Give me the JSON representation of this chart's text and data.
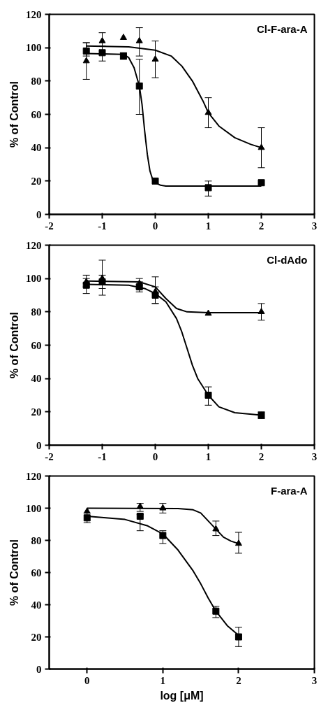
{
  "chart_data": [
    {
      "type": "scatter",
      "ylabel": "% of Control",
      "annotations": [
        "Cl-F-ara-A"
      ],
      "xlim": [
        -2,
        3
      ],
      "xticks": [
        -2,
        -1,
        0,
        1,
        2,
        3
      ],
      "ylim": [
        0,
        120
      ],
      "yticks": [
        0,
        20,
        40,
        60,
        80,
        100,
        120
      ],
      "grid": false,
      "series": [
        {
          "marker": "triangle",
          "color": "#000000",
          "x": [
            -1.3,
            -1,
            -0.6,
            -0.3,
            0,
            1,
            2
          ],
          "values": [
            92,
            104,
            106,
            104,
            93,
            61,
            40
          ],
          "errors": [
            [
              81,
              103
            ],
            [
              96,
              109
            ],
            null,
            [
              95,
              112
            ],
            [
              82,
              104
            ],
            [
              52,
              70
            ],
            [
              28,
              52
            ]
          ]
        },
        {
          "marker": "square",
          "color": "#000000",
          "x": [
            -1.3,
            -1,
            -0.6,
            -0.3,
            0,
            1,
            2
          ],
          "values": [
            98,
            97,
            95,
            77,
            20,
            16,
            19
          ],
          "errors": [
            [
              95,
              103
            ],
            [
              92,
              101
            ],
            [
              93,
              97
            ],
            [
              60,
              93
            ],
            null,
            [
              11,
              20
            ],
            null
          ]
        },
        {
          "type": "line",
          "marker": "none",
          "color": "#000000",
          "x": [
            -1.3,
            -0.5,
            0,
            0.3,
            0.5,
            0.7,
            0.9,
            1,
            1.2,
            1.5,
            1.8,
            2
          ],
          "values": [
            101,
            100.5,
            98.5,
            95,
            89,
            80,
            68,
            61,
            53,
            46,
            42,
            40
          ]
        },
        {
          "type": "line",
          "marker": "none",
          "color": "#000000",
          "x": [
            -1.3,
            -0.6,
            -0.5,
            -0.4,
            -0.3,
            -0.25,
            -0.2,
            -0.15,
            -0.1,
            -0.05,
            0,
            0.1,
            0.2,
            2
          ],
          "values": [
            96.5,
            96,
            94,
            88,
            77,
            66,
            50,
            36,
            26,
            21,
            19,
            17.5,
            17,
            17
          ]
        }
      ]
    },
    {
      "type": "scatter",
      "ylabel": "% of Control",
      "annotations": [
        "Cl-dAdo"
      ],
      "xlim": [
        -2,
        3
      ],
      "xticks": [
        -2,
        -1,
        0,
        1,
        2,
        3
      ],
      "ylim": [
        0,
        120
      ],
      "yticks": [
        0,
        20,
        40,
        60,
        80,
        100,
        120
      ],
      "grid": false,
      "series": [
        {
          "marker": "triangle",
          "color": "#000000",
          "x": [
            -1.3,
            -1,
            -0.3,
            0,
            1,
            2
          ],
          "values": [
            98,
            100,
            97,
            92,
            79,
            80
          ],
          "errors": [
            [
              95,
              102
            ],
            [
              90,
              111
            ],
            [
              94,
              100
            ],
            [
              85,
              101
            ],
            null,
            [
              75,
              85
            ]
          ]
        },
        {
          "marker": "square",
          "color": "#000000",
          "x": [
            -1.3,
            -1,
            -0.3,
            0,
            1,
            2
          ],
          "values": [
            96,
            98,
            95,
            90,
            30,
            18
          ],
          "errors": [
            [
              91,
              100
            ],
            [
              94,
              102
            ],
            [
              92,
              98
            ],
            [
              85,
              95
            ],
            [
              24,
              35
            ],
            [
              16,
              20
            ]
          ]
        },
        {
          "type": "line",
          "marker": "none",
          "color": "#000000",
          "x": [
            -1.3,
            -0.3,
            0,
            0.2,
            0.4,
            0.6,
            1,
            2
          ],
          "values": [
            98.5,
            98,
            95,
            88,
            82,
            80,
            79.5,
            79.5
          ]
        },
        {
          "type": "line",
          "marker": "none",
          "color": "#000000",
          "x": [
            -1.3,
            -0.5,
            -0.2,
            0,
            0.2,
            0.4,
            0.5,
            0.6,
            0.7,
            0.8,
            1,
            1.2,
            1.5,
            2
          ],
          "values": [
            96.5,
            96,
            94,
            91,
            86,
            76,
            68,
            58,
            48,
            40,
            30,
            23,
            19.5,
            18
          ]
        }
      ]
    },
    {
      "type": "scatter",
      "xlabel": "log [μM]",
      "ylabel": "% of Control",
      "annotations": [
        "F-ara-A"
      ],
      "xlim": [
        -0.5,
        3
      ],
      "xticks": [
        0,
        1,
        2,
        3
      ],
      "ylim": [
        0,
        120
      ],
      "yticks": [
        0,
        20,
        40,
        60,
        80,
        100,
        120
      ],
      "grid": false,
      "series": [
        {
          "marker": "triangle",
          "color": "#000000",
          "x": [
            0,
            0.7,
            1,
            1.7,
            2
          ],
          "values": [
            98,
            101,
            100,
            87,
            78
          ],
          "errors": [
            null,
            [
              98,
              103
            ],
            [
              97,
              103
            ],
            [
              83,
              92
            ],
            [
              72,
              85
            ]
          ]
        },
        {
          "marker": "square",
          "color": "#000000",
          "x": [
            0,
            0.7,
            1,
            1.7,
            2
          ],
          "values": [
            94,
            95,
            83,
            36,
            20
          ],
          "errors": [
            [
              91,
              97
            ],
            [
              86,
              96
            ],
            [
              78,
              86
            ],
            [
              32,
              39
            ],
            [
              14,
              26
            ]
          ]
        },
        {
          "type": "line",
          "marker": "none",
          "color": "#000000",
          "x": [
            0,
            1.2,
            1.4,
            1.5,
            1.6,
            1.7,
            1.8,
            1.9,
            2
          ],
          "values": [
            100,
            99.8,
            99,
            97,
            92,
            87,
            82,
            79.5,
            78
          ]
        },
        {
          "type": "line",
          "marker": "none",
          "color": "#000000",
          "x": [
            0,
            0.5,
            0.8,
            1,
            1.2,
            1.4,
            1.5,
            1.6,
            1.7,
            1.85,
            2
          ],
          "values": [
            95,
            93,
            89,
            84,
            74,
            61,
            53,
            44,
            36,
            27,
            21
          ]
        }
      ]
    }
  ]
}
